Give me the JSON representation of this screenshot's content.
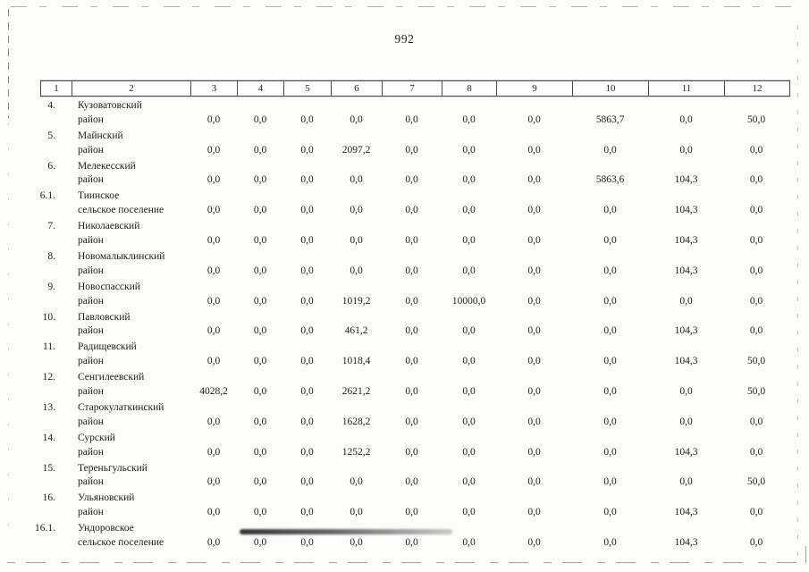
{
  "page": {
    "number": "992"
  },
  "table": {
    "header": [
      "1",
      "2",
      "3",
      "4",
      "5",
      "6",
      "7",
      "8",
      "9",
      "10",
      "11",
      "12"
    ],
    "rows": [
      {
        "num": "4.",
        "name": [
          "Кузоватовский",
          "район"
        ],
        "values": [
          "0,0",
          "0,0",
          "0,0",
          "0,0",
          "0,0",
          "0,0",
          "0,0",
          "5863,7",
          "0,0",
          "50,0"
        ]
      },
      {
        "num": "5.",
        "name": [
          "Майнский",
          "район"
        ],
        "values": [
          "0,0",
          "0,0",
          "0,0",
          "2097,2",
          "0,0",
          "0,0",
          "0,0",
          "0,0",
          "0,0",
          "0,0"
        ]
      },
      {
        "num": "6.",
        "name": [
          "Мелекесский",
          "район"
        ],
        "values": [
          "0,0",
          "0,0",
          "0,0",
          "0,0",
          "0,0",
          "0,0",
          "0,0",
          "5863,6",
          "104,3",
          "0,0"
        ]
      },
      {
        "num": "6.1.",
        "name": [
          "Тиинское",
          "сельское поселение"
        ],
        "values": [
          "0,0",
          "0,0",
          "0,0",
          "0,0",
          "0,0",
          "0,0",
          "0,0",
          "0,0",
          "104,3",
          "0,0"
        ]
      },
      {
        "num": "7.",
        "name": [
          "Николаевский",
          "район"
        ],
        "values": [
          "0,0",
          "0,0",
          "0,0",
          "0,0",
          "0,0",
          "0,0",
          "0,0",
          "0,0",
          "104,3",
          "0,0"
        ]
      },
      {
        "num": "8.",
        "name": [
          "Новомалыклинский",
          "район"
        ],
        "values": [
          "0,0",
          "0,0",
          "0,0",
          "0,0",
          "0,0",
          "0,0",
          "0,0",
          "0,0",
          "104,3",
          "0,0"
        ]
      },
      {
        "num": "9.",
        "name": [
          "Новоспасский",
          "район"
        ],
        "values": [
          "0,0",
          "0,0",
          "0,0",
          "1019,2",
          "0,0",
          "10000,0",
          "0,0",
          "0,0",
          "0,0",
          "0,0"
        ]
      },
      {
        "num": "10.",
        "name": [
          "Павловский",
          "район"
        ],
        "values": [
          "0,0",
          "0,0",
          "0,0",
          "461,2",
          "0,0",
          "0,0",
          "0,0",
          "0,0",
          "104,3",
          "0,0"
        ]
      },
      {
        "num": "11.",
        "name": [
          "Радищевский",
          "район"
        ],
        "values": [
          "0,0",
          "0,0",
          "0,0",
          "1018,4",
          "0,0",
          "0,0",
          "0,0",
          "0,0",
          "104,3",
          "50,0"
        ]
      },
      {
        "num": "12.",
        "name": [
          "Сенгилеевский",
          "район"
        ],
        "values": [
          "4028,2",
          "0,0",
          "0,0",
          "2621,2",
          "0,0",
          "0,0",
          "0,0",
          "0,0",
          "0,0",
          "50,0"
        ]
      },
      {
        "num": "13.",
        "name": [
          "Старокулаткинский",
          "район"
        ],
        "values": [
          "0,0",
          "0,0",
          "0,0",
          "1628,2",
          "0,0",
          "0,0",
          "0,0",
          "0,0",
          "0,0",
          "0,0"
        ]
      },
      {
        "num": "14.",
        "name": [
          "Сурский",
          "район"
        ],
        "values": [
          "0,0",
          "0,0",
          "0,0",
          "1252,2",
          "0,0",
          "0,0",
          "0,0",
          "0,0",
          "104,3",
          "0,0"
        ]
      },
      {
        "num": "15.",
        "name": [
          "Тереньгульский",
          "район"
        ],
        "values": [
          "0,0",
          "0,0",
          "0,0",
          "0,0",
          "0,0",
          "0,0",
          "0,0",
          "0,0",
          "0,0",
          "50,0"
        ]
      },
      {
        "num": "16.",
        "name": [
          "Ульяновский",
          "район"
        ],
        "values": [
          "0,0",
          "0,0",
          "0,0",
          "0,0",
          "0,0",
          "0,0",
          "0,0",
          "0,0",
          "104,3",
          "0,0"
        ]
      },
      {
        "num": "16.1.",
        "name": [
          "Ундоровское",
          "сельское поселение"
        ],
        "values": [
          "0,0",
          "0,0",
          "0,0",
          "0,0",
          "0,0",
          "0,0",
          "0,0",
          "0,0",
          "104,3",
          "0,0"
        ]
      }
    ]
  }
}
